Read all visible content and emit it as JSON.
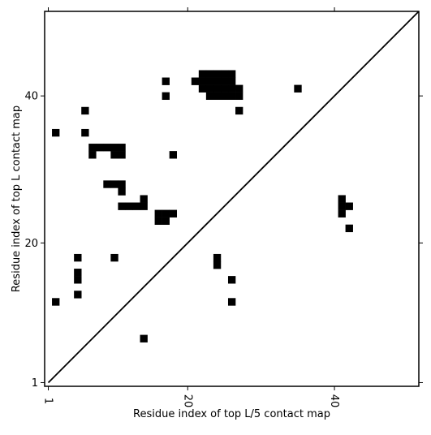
{
  "chart_data": {
    "type": "heatmap",
    "title": "",
    "xlabel": "Residue index of top L/5 contact map",
    "ylabel": "Residue index of top L contact map",
    "xlim": [
      0.5,
      51.5
    ],
    "ylim": [
      0.5,
      51.5
    ],
    "xticks": [
      1,
      20,
      40
    ],
    "yticks": [
      1,
      20,
      40
    ],
    "diagonal_line": true,
    "grid": false,
    "cell_color": "#000000",
    "cells_top_L": [
      [
        22,
        41
      ],
      [
        22,
        42
      ],
      [
        22,
        43
      ],
      [
        23,
        41
      ],
      [
        23,
        42
      ],
      [
        23,
        43
      ],
      [
        24,
        41
      ],
      [
        24,
        42
      ],
      [
        24,
        43
      ],
      [
        25,
        41
      ],
      [
        25,
        42
      ],
      [
        25,
        43
      ],
      [
        26,
        41
      ],
      [
        26,
        42
      ],
      [
        26,
        43
      ],
      [
        23,
        40
      ],
      [
        24,
        40
      ],
      [
        25,
        40
      ],
      [
        26,
        40
      ],
      [
        27,
        40
      ],
      [
        27,
        41
      ],
      [
        21,
        42
      ],
      [
        17,
        42
      ],
      [
        17,
        40
      ],
      [
        27,
        38
      ],
      [
        6,
        38
      ],
      [
        6,
        35
      ],
      [
        2,
        35
      ],
      [
        7,
        33
      ],
      [
        8,
        33
      ],
      [
        9,
        33
      ],
      [
        10,
        33
      ],
      [
        11,
        33
      ],
      [
        7,
        32
      ],
      [
        10,
        32
      ],
      [
        11,
        32
      ],
      [
        18,
        32
      ],
      [
        9,
        28
      ],
      [
        10,
        28
      ],
      [
        11,
        28
      ],
      [
        11,
        27
      ],
      [
        14,
        26
      ],
      [
        11,
        25
      ],
      [
        12,
        25
      ],
      [
        13,
        25
      ],
      [
        14,
        25
      ],
      [
        16,
        24
      ],
      [
        17,
        24
      ],
      [
        18,
        24
      ],
      [
        16,
        23
      ],
      [
        17,
        23
      ],
      [
        35,
        41
      ]
    ],
    "cells_top_L5": [
      [
        41,
        26
      ],
      [
        41,
        25
      ],
      [
        41,
        24
      ],
      [
        42,
        25
      ],
      [
        42,
        22
      ],
      [
        5,
        18
      ],
      [
        10,
        18
      ],
      [
        5,
        16
      ],
      [
        5,
        15
      ],
      [
        5,
        13
      ],
      [
        2,
        12
      ],
      [
        24,
        18
      ],
      [
        24,
        17
      ],
      [
        26,
        15
      ],
      [
        26,
        12
      ],
      [
        14,
        7
      ]
    ]
  }
}
